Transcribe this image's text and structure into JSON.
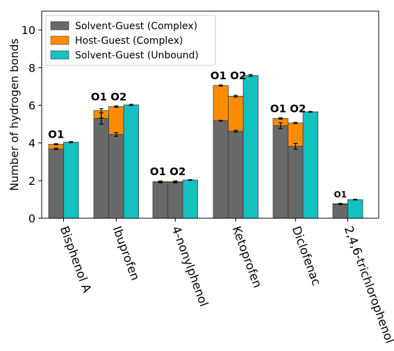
{
  "chart_data": {
    "type": "bar",
    "ylabel": "Number of hydrogen bonds",
    "ylim": [
      0,
      11
    ],
    "yticks": [
      0,
      2,
      4,
      6,
      8,
      10
    ],
    "grid": false,
    "legend_position": "top-left",
    "colors": {
      "solvent_complex": "#696969",
      "host_complex": "#ff8c00",
      "solvent_unbound": "#14c0c0"
    },
    "legend": [
      {
        "key": "solvent_complex",
        "name": "Solvent-Guest (Complex)"
      },
      {
        "key": "host_complex",
        "name": "Host-Guest (Complex)"
      },
      {
        "key": "solvent_unbound",
        "name": "Solvent-Guest (Unbound)"
      }
    ],
    "categories": [
      "Bisphenol A",
      "Ibuprofen",
      "4-nonylphenol",
      "Ketoprofen",
      "Diclofenac",
      "2,4,6-trichlorophenol"
    ],
    "groups": [
      {
        "category": "Bisphenol A",
        "annotation": "O1",
        "complex": [
          {
            "site": "O1",
            "solvent": 3.68,
            "solvent_err": 0.04,
            "total": 3.93,
            "total_err": 0.03
          }
        ],
        "unbound": 4.04,
        "unbound_err": 0.03
      },
      {
        "category": "Ibuprofen",
        "annotation": "O1 O2",
        "complex": [
          {
            "site": "O1",
            "solvent": 5.3,
            "solvent_err": 0.3,
            "total": 5.72,
            "total_err": 0.0,
            "host_err": 0.25
          },
          {
            "site": "O2",
            "solvent": 4.45,
            "solvent_err": 0.1,
            "total": 5.93,
            "total_err": 0.04
          }
        ],
        "unbound": 6.02,
        "unbound_err": 0.03
      },
      {
        "category": "4-nonylphenol",
        "annotation": "O1 O2",
        "complex": [
          {
            "site": "O1",
            "solvent": 1.9,
            "solvent_err": 0.02,
            "total": 1.95,
            "total_err": 0.03
          },
          {
            "site": "O2",
            "solvent": 1.9,
            "solvent_err": 0.02,
            "total": 1.95,
            "total_err": 0.03
          }
        ],
        "unbound": 2.03,
        "unbound_err": 0.02
      },
      {
        "category": "Ketoprofen",
        "annotation": "O1 O2",
        "complex": [
          {
            "site": "O1",
            "solvent": 5.18,
            "solvent_err": 0.02,
            "total": 7.05,
            "total_err": 0.03
          },
          {
            "site": "O2",
            "solvent": 4.62,
            "solvent_err": 0.05,
            "total": 6.48,
            "total_err": 0.05
          }
        ],
        "unbound": 7.58,
        "unbound_err": 0.05
      },
      {
        "category": "Diclofenac",
        "annotation": "O1 O2",
        "complex": [
          {
            "site": "O1",
            "solvent": 4.92,
            "solvent_err": 0.15,
            "total": 5.3,
            "total_err": 0.04
          },
          {
            "site": "O2",
            "solvent": 3.82,
            "solvent_err": 0.15,
            "total": 5.06,
            "total_err": 0.03
          }
        ],
        "unbound": 5.65,
        "unbound_err": 0.02
      },
      {
        "category": "2,4,6-trichlorophenol",
        "annotation": "O1",
        "annotation_small": true,
        "complex": [
          {
            "site": "O1",
            "solvent": 0.74,
            "solvent_err": 0.02,
            "total": 0.77,
            "total_err": 0.02
          }
        ],
        "unbound": 0.99,
        "unbound_err": 0.02
      }
    ]
  }
}
